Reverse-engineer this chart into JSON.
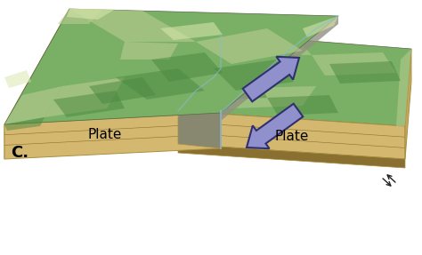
{
  "background_color": "#ffffff",
  "label_c": "C.",
  "label_plate_upper": "Plate",
  "label_plate_lower": "Plate",
  "arrow_color": "#9090cc",
  "arrow_edge_color": "#303070",
  "tan_light": "#d4b870",
  "tan_mid": "#c4a858",
  "tan_dark": "#a89040",
  "tan_shadow": "#8a7030",
  "terrain_green_base": "#6aaa5a",
  "terrain_light": "#c8d8a0",
  "terrain_dark": "#3a7a30",
  "fault_line_color": "#8ab8d8",
  "small_arrow_color": "#222222",
  "label_fontsize": 11,
  "c_fontsize": 13
}
